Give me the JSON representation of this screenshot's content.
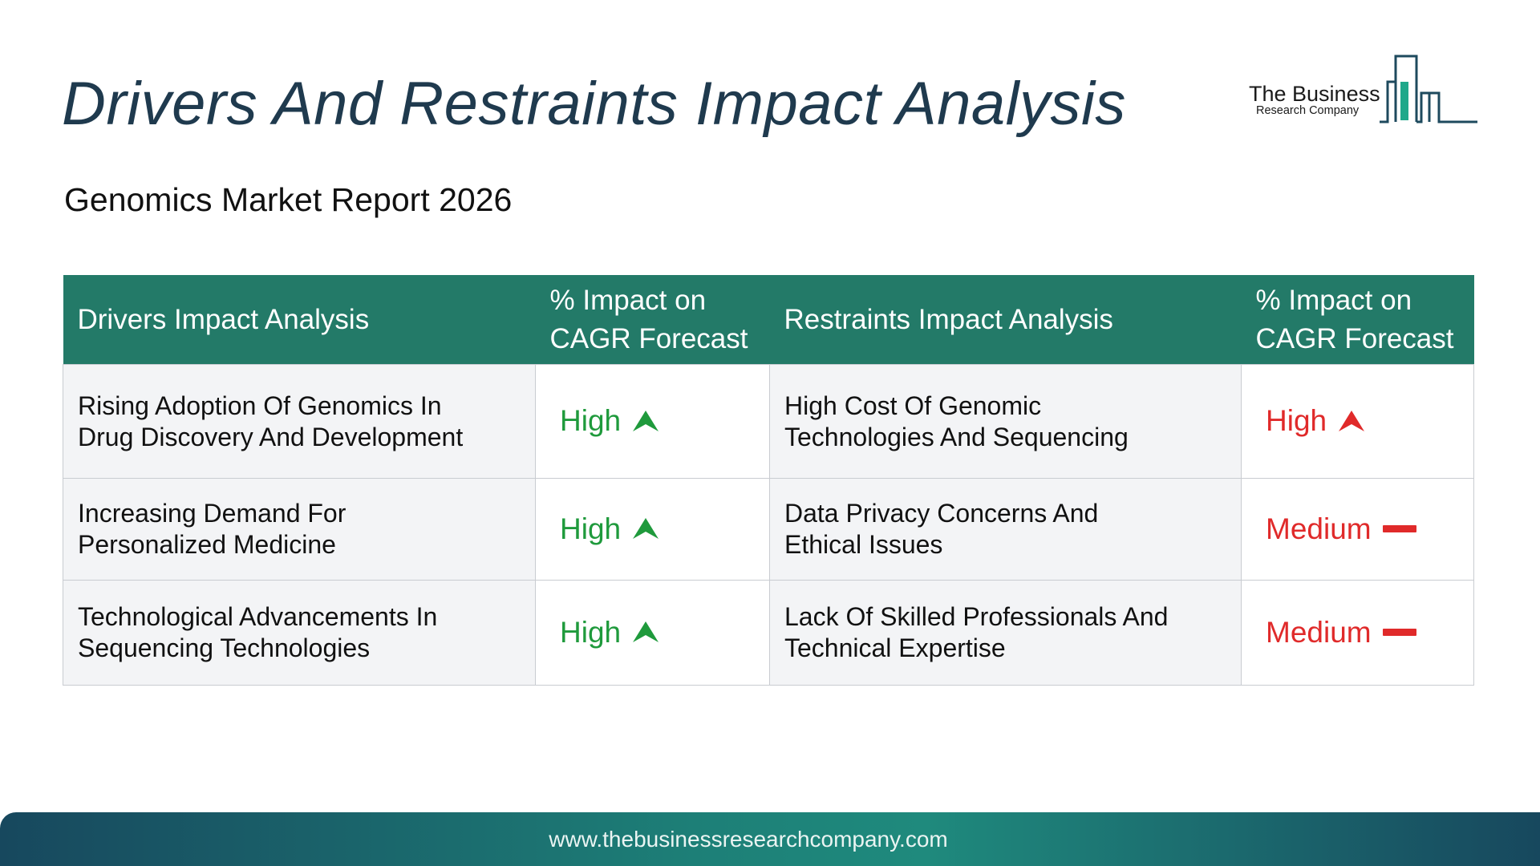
{
  "header": {
    "title": "Drivers And Restraints Impact Analysis",
    "subtitle": "Genomics Market Report 2026"
  },
  "logo": {
    "name": "The Business",
    "tagline": "Research Company",
    "icon": "bar-building-logo-icon"
  },
  "table": {
    "headers": {
      "drivers": "Drivers Impact Analysis",
      "drivers_impact_line1": "% Impact on",
      "drivers_impact_line2": "CAGR Forecast",
      "restraints": "Restraints Impact Analysis",
      "restraints_impact_line1": "% Impact on",
      "restraints_impact_line2": "CAGR Forecast"
    },
    "rows": [
      {
        "driver_line1": "Rising Adoption Of Genomics In",
        "driver_line2": "Drug Discovery And Development",
        "driver_impact": "High",
        "driver_icon": "arrow-up-icon",
        "restraint_line1": "High Cost Of Genomic",
        "restraint_line2": "Technologies And Sequencing",
        "restraint_impact": "High",
        "restraint_icon": "arrow-up-icon"
      },
      {
        "driver_line1": "Increasing Demand For",
        "driver_line2": "Personalized Medicine",
        "driver_impact": "High",
        "driver_icon": "arrow-up-icon",
        "restraint_line1": "Data Privacy Concerns And",
        "restraint_line2": "Ethical Issues",
        "restraint_impact": "Medium",
        "restraint_icon": "dash-icon"
      },
      {
        "driver_line1": "Technological Advancements In",
        "driver_line2": "Sequencing Technologies",
        "driver_impact": "High",
        "driver_icon": "arrow-up-icon",
        "restraint_line1": "Lack Of Skilled Professionals And",
        "restraint_line2": "Technical Expertise",
        "restraint_impact": "Medium",
        "restraint_icon": "dash-icon"
      }
    ]
  },
  "footer": {
    "url": "www.thebusinessresearchcompany.com"
  },
  "colors": {
    "header_bg": "#237a68",
    "title_text": "#1f3a4e",
    "driver_impact": "#1f9a3c",
    "restraint_impact": "#e02a2a",
    "footer_start": "#17485e",
    "footer_mid": "#1f8a7d"
  }
}
